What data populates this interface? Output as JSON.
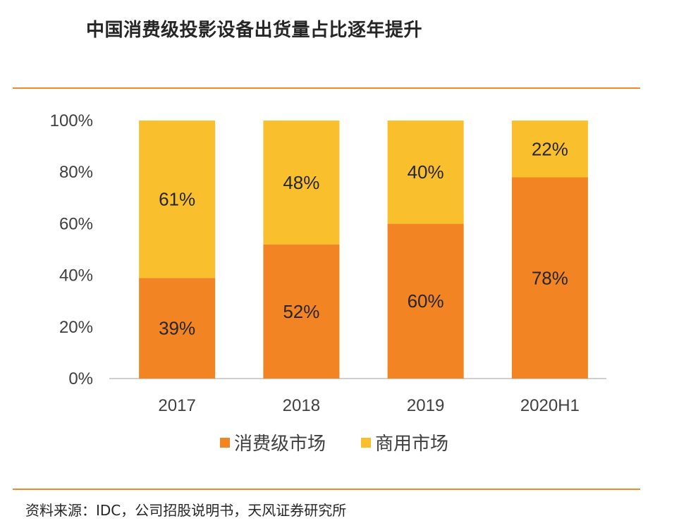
{
  "title": "中国消费级投影设备出货量占比逐年提升",
  "source": "资料来源：IDC，公司招股说明书，天风证券研究所",
  "colors": {
    "consumer": "#F28423",
    "commercial": "#FABF2D",
    "accent_rule": "#ED8A2C"
  },
  "chart_data": {
    "type": "bar",
    "stacked": true,
    "categories": [
      "2017",
      "2018",
      "2019",
      "2020H1"
    ],
    "series": [
      {
        "name": "消费级市场",
        "values": [
          39,
          52,
          60,
          78
        ],
        "labels": [
          "39%",
          "52%",
          "60%",
          "78%"
        ]
      },
      {
        "name": "商用市场",
        "values": [
          61,
          48,
          40,
          22
        ],
        "labels": [
          "61%",
          "48%",
          "40%",
          "22%"
        ]
      }
    ],
    "ylim": [
      0,
      100
    ],
    "yticks": [
      0,
      20,
      40,
      60,
      80,
      100
    ],
    "ytick_labels": [
      "0%",
      "20%",
      "40%",
      "60%",
      "80%",
      "100%"
    ],
    "legend_position": "bottom",
    "grid": false
  }
}
